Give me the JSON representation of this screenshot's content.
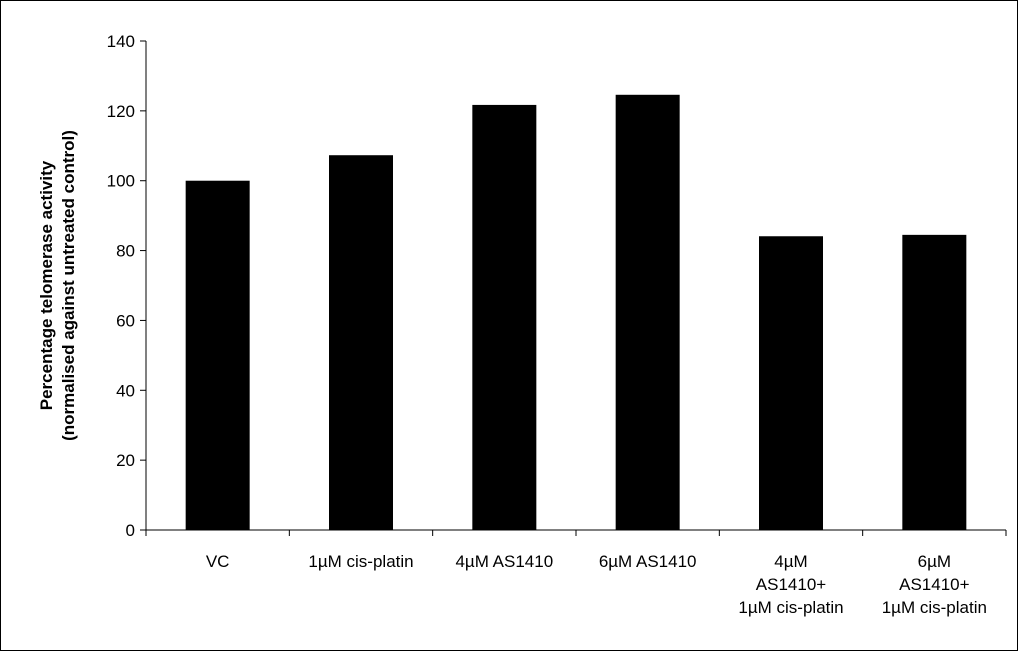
{
  "chart_data": {
    "type": "bar",
    "title": "",
    "xlabel": "",
    "ylabel": [
      "Percentage telomerase activity",
      "(normalised against untreated control)"
    ],
    "categories": [
      [
        "VC"
      ],
      [
        "1µM cis-platin"
      ],
      [
        "4µM AS1410"
      ],
      [
        "6µM AS1410"
      ],
      [
        "4µM",
        "AS1410+",
        "1µM cis-platin"
      ],
      [
        "6µM",
        "AS1410+",
        "1µM cis-platin"
      ]
    ],
    "values": [
      100,
      107.3,
      121.7,
      124.6,
      84.1,
      84.5
    ],
    "ylim": [
      0,
      140
    ],
    "yticks": [
      0,
      20,
      40,
      60,
      80,
      100,
      120,
      140
    ],
    "grid": false,
    "legend": "none",
    "bar_color": "#000000"
  }
}
